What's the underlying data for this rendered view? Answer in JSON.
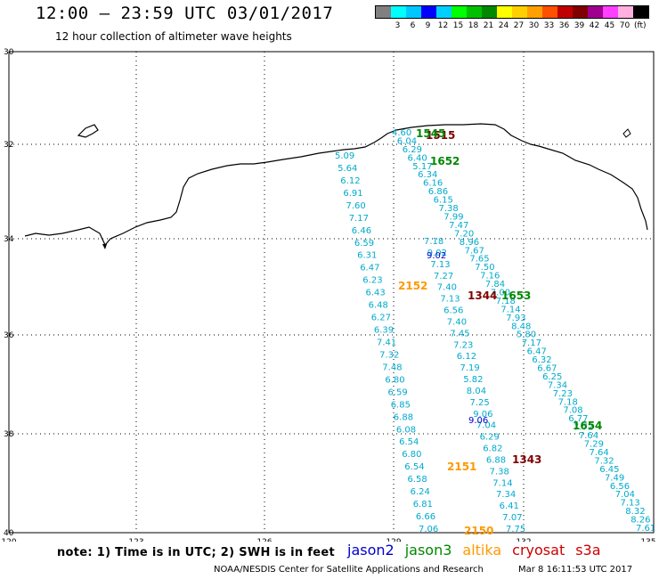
{
  "header": {
    "title": "12:00 — 23:59 UTC 03/01/2017",
    "subtitle": "12 hour collection of altimeter wave heights"
  },
  "legend": {
    "colors": [
      "#808080",
      "#00ffff",
      "#00c8ff",
      "#0000ff",
      "#00d0ff",
      "#00ff00",
      "#00c000",
      "#008800",
      "#ffff00",
      "#ffd000",
      "#ffa000",
      "#ff5000",
      "#c00000",
      "#800000",
      "#a00090",
      "#ff40ff",
      "#ffb0e0",
      "#000000"
    ],
    "ticks": [
      "",
      "3",
      "6",
      "9",
      "12",
      "15",
      "18",
      "21",
      "24",
      "27",
      "30",
      "33",
      "36",
      "39",
      "42",
      "45",
      "70"
    ],
    "unit": "(ft)"
  },
  "map": {
    "lat_ticks": [
      "30",
      "32",
      "34",
      "36",
      "38",
      "40"
    ],
    "lon_ticks": [
      "120",
      "123",
      "126",
      "129",
      "132",
      "135"
    ],
    "colors": {
      "jason2": "#0000cc",
      "jason3": "#008800",
      "altika": "#ff9900",
      "cryosat": "#800000",
      "s3a": "#cc0000",
      "swh": "#00aacc"
    },
    "tracks": [
      {
        "name": "jason3-1652",
        "color": "#00aacc",
        "values": [
          "5.09",
          "5.64",
          "6.12",
          "6.91",
          "7.60",
          "7.17",
          "6.46",
          "6.59",
          "6.31",
          "6.47",
          "6.23",
          "6.43",
          "6.48",
          "6.27",
          "6.39",
          "7.41",
          "7.32",
          "7.48",
          "6.80",
          "6.59",
          "6.85",
          "6.88",
          "6.08",
          "6.54",
          "6.80",
          "6.54",
          "6.58",
          "6.24",
          "6.81",
          "6.66",
          "7.06"
        ]
      },
      {
        "name": "s3a-1515",
        "color": "#00aacc",
        "values": [
          "4.60",
          "6.04",
          "6.29",
          "6.40",
          "5.17",
          "6.34",
          "6.16",
          "6.86",
          "6.15",
          "7.38",
          "7.99",
          "7.47",
          "7.20",
          "8.96",
          "7.67",
          "7.65",
          "7.50",
          "7.16",
          "7.84",
          "7.00",
          "7.18",
          "7.14",
          "7.93",
          "8.48",
          "5.80",
          "7.17",
          "6.47",
          "6.32",
          "6.67",
          "6.25",
          "7.34",
          "7.23",
          "7.18",
          "7.08",
          "6.77",
          "7.72",
          "7.64",
          "7.29",
          "7.64",
          "7.32",
          "6.45",
          "7.49",
          "6.56",
          "7.04",
          "7.13",
          "8.32",
          "8.26",
          "7.61"
        ]
      },
      {
        "name": "jason2-1653",
        "color": "#00aacc",
        "values": [
          "7.18",
          "9.02",
          "7.13",
          "7.27",
          "7.40",
          "7.13",
          "6.56",
          "7.40",
          "7.45",
          "7.23",
          "6.12",
          "7.19",
          "5.82",
          "8.04",
          "7.25",
          "9.06",
          "7.04",
          "6.29",
          "6.82",
          "6.88",
          "7.38",
          "7.14",
          "7.34",
          "6.41",
          "7.07",
          "7.75"
        ]
      }
    ],
    "pass_labels": [
      {
        "text": "1515",
        "color": "#800000"
      },
      {
        "text": "1545",
        "color": "#008800"
      },
      {
        "text": "1652",
        "color": "#008800"
      },
      {
        "text": "1653",
        "color": "#008800"
      },
      {
        "text": "1344",
        "color": "#800000"
      },
      {
        "text": "2152",
        "color": "#ff9900"
      },
      {
        "text": "1654",
        "color": "#008800"
      },
      {
        "text": "1343",
        "color": "#800000"
      },
      {
        "text": "2151",
        "color": "#ff9900"
      },
      {
        "text": "2150",
        "color": "#ff9900"
      }
    ],
    "highlight_values": [
      {
        "text": "9.02",
        "color": "#0000cc"
      },
      {
        "text": "9.06",
        "color": "#0000cc"
      }
    ]
  },
  "footer": {
    "note": "note: 1) Time is in UTC; 2) SWH is in feet",
    "satellites": [
      {
        "name": "jason2",
        "color": "#0000cc"
      },
      {
        "name": "jason3",
        "color": "#008800"
      },
      {
        "name": "altika",
        "color": "#ff9900"
      },
      {
        "name": "cryosat",
        "color": "#cc0000"
      },
      {
        "name": "s3a",
        "color": "#cc0000"
      }
    ],
    "credit": "NOAA/NESDIS Center for Satellite Applications and Research",
    "timestamp": "Mar  8 16:11:53 UTC 2017"
  }
}
